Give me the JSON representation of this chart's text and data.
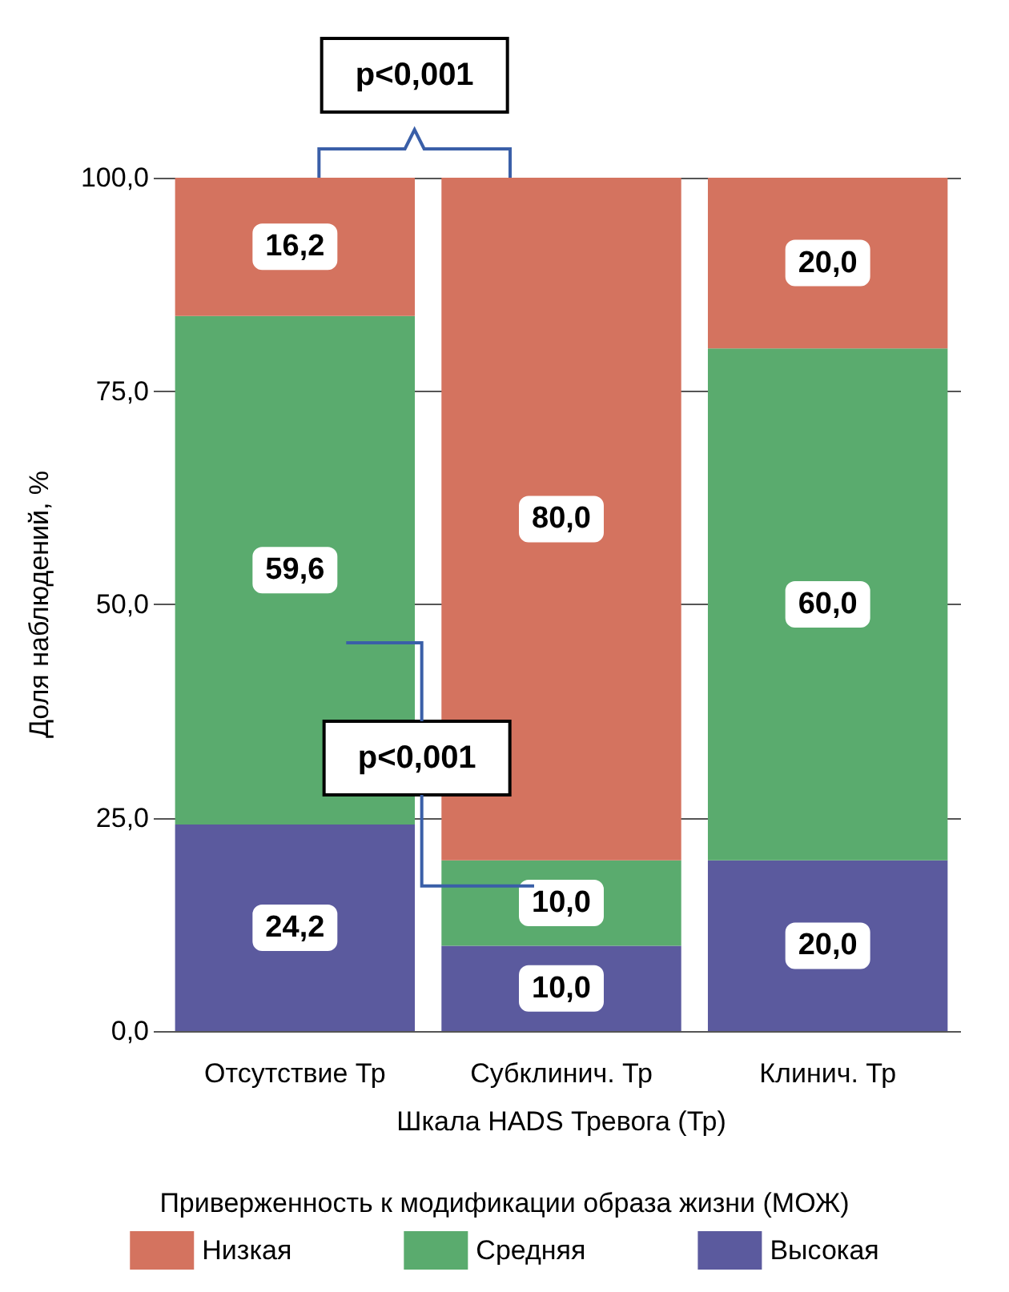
{
  "chart_data": {
    "type": "bar",
    "stacked": true,
    "categories": [
      "Отсутствие Тр",
      "Субклинич. Тр",
      "Клинич. Тр"
    ],
    "xlabel": "Шкала HADS Тревога (Тр)",
    "ylabel": "Доля наблюдений, %",
    "legend_title": "Приверженность к модификации образа жизни (МОЖ)",
    "legend": "bottom",
    "series": [
      {
        "name": "Высокая",
        "color": "#5b5a9e",
        "values": [
          24.2,
          10.0,
          20.0
        ],
        "value_labels": [
          "24,2",
          "10,0",
          "20,0"
        ]
      },
      {
        "name": "Средняя",
        "color": "#5aab6e",
        "values": [
          59.6,
          10.0,
          60.0
        ],
        "value_labels": [
          "59,6",
          "10,0",
          "60,0"
        ]
      },
      {
        "name": "Низкая",
        "color": "#d4735f",
        "values": [
          16.2,
          80.0,
          20.0
        ],
        "value_labels": [
          "16,2",
          "80,0",
          "20,0"
        ]
      }
    ],
    "ylim": [
      0,
      100
    ],
    "yticks": [
      {
        "value": 0,
        "label": "0,0"
      },
      {
        "value": 25,
        "label": "25,0"
      },
      {
        "value": 50,
        "label": "50,0"
      },
      {
        "value": 75,
        "label": "75,0"
      },
      {
        "value": 100,
        "label": "100,0"
      }
    ],
    "grid": "y",
    "annotations": [
      "p<0,001",
      "p<0,001"
    ]
  }
}
